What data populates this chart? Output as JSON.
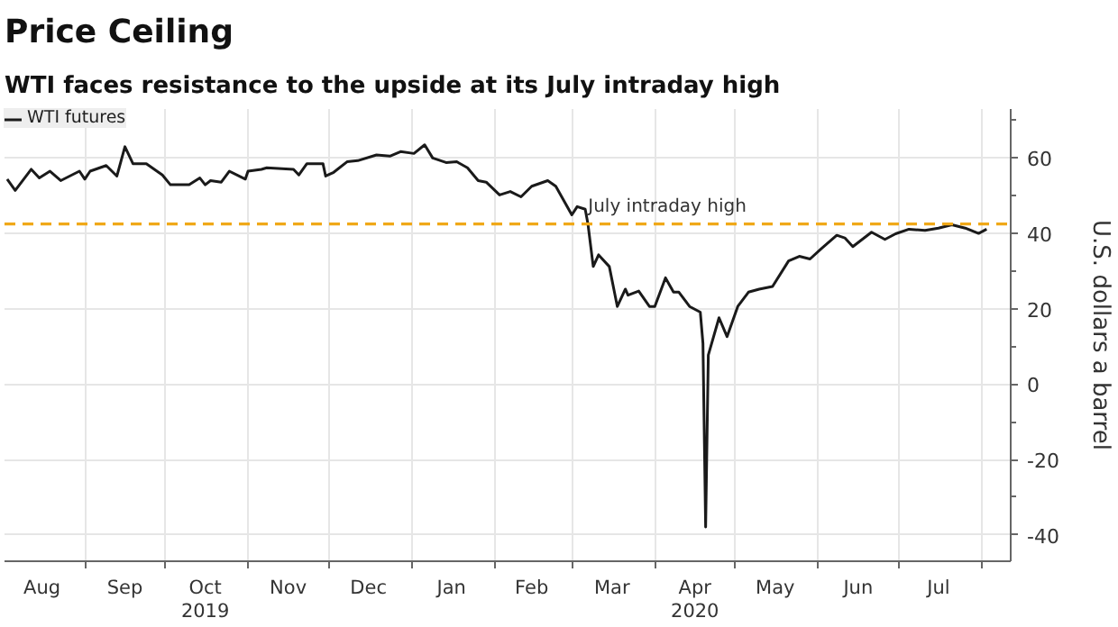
{
  "chart_data": {
    "type": "line",
    "title": "Price Ceiling",
    "subtitle": "WTI faces resistance to the upside at its July intraday high",
    "y2label": "U.S. dollars a barrel",
    "x": [
      "2019-08-03",
      "2019-08-06",
      "2019-08-12",
      "2019-08-15",
      "2019-08-19",
      "2019-08-23",
      "2019-08-30",
      "2019-09-01",
      "2019-09-03",
      "2019-09-09",
      "2019-09-13",
      "2019-09-16",
      "2019-09-19",
      "2019-09-24",
      "2019-09-30",
      "2019-10-03",
      "2019-10-10",
      "2019-10-14",
      "2019-10-16",
      "2019-10-18",
      "2019-10-22",
      "2019-10-25",
      "2019-10-31",
      "2019-11-01",
      "2019-11-06",
      "2019-11-08",
      "2019-11-18",
      "2019-11-20",
      "2019-11-23",
      "2019-11-29",
      "2019-11-30",
      "2019-12-03",
      "2019-12-08",
      "2019-12-12",
      "2019-12-19",
      "2019-12-24",
      "2019-12-28",
      "2020-01-02",
      "2020-01-06",
      "2020-01-09",
      "2020-01-14",
      "2020-01-18",
      "2020-01-22",
      "2020-01-26",
      "2020-01-29",
      "2020-02-03",
      "2020-02-07",
      "2020-02-11",
      "2020-02-15",
      "2020-02-21",
      "2020-02-24",
      "2020-03-01",
      "2020-03-03",
      "2020-03-06",
      "2020-03-07",
      "2020-03-09",
      "2020-03-11",
      "2020-03-15",
      "2020-03-18",
      "2020-03-21",
      "2020-03-22",
      "2020-03-26",
      "2020-03-30",
      "2020-04-01",
      "2020-04-05",
      "2020-04-08",
      "2020-04-10",
      "2020-04-14",
      "2020-04-18",
      "2020-04-19",
      "2020-04-20",
      "2020-04-21",
      "2020-04-25",
      "2020-04-28",
      "2020-05-02",
      "2020-05-06",
      "2020-05-10",
      "2020-05-15",
      "2020-05-21",
      "2020-05-25",
      "2020-05-29",
      "2020-06-02",
      "2020-06-08",
      "2020-06-11",
      "2020-06-14",
      "2020-06-21",
      "2020-06-26",
      "2020-06-30",
      "2020-07-05",
      "2020-07-11",
      "2020-07-16",
      "2020-07-21",
      "2020-07-26",
      "2020-07-31",
      "2020-08-03"
    ],
    "series": [
      {
        "name": "WTI futures",
        "color": "#1a1a1a",
        "values": [
          54.4,
          51.4,
          57,
          54.7,
          56.5,
          54,
          56.5,
          54.4,
          56.5,
          58,
          55.2,
          63,
          58.5,
          58.5,
          55.5,
          52.9,
          52.9,
          54.7,
          52.9,
          54,
          53.6,
          56.5,
          54.4,
          56.5,
          57,
          57.4,
          57,
          55.5,
          58.5,
          58.5,
          55.2,
          56.2,
          59,
          59.3,
          60.8,
          60.5,
          61.7,
          61.2,
          63.5,
          60,
          58.8,
          59,
          57.4,
          54,
          53.6,
          50.2,
          51.1,
          49.7,
          52.5,
          54,
          52.5,
          44.9,
          47.1,
          46.4,
          42.6,
          31.2,
          34.3,
          31.2,
          20.6,
          25.2,
          23.6,
          24.7,
          20.6,
          20.6,
          28.2,
          24.4,
          24.4,
          20.6,
          19.1,
          10.8,
          -37.9,
          7.7,
          17.6,
          12.6,
          20.6,
          24.4,
          25.2,
          25.9,
          32.7,
          33.9,
          33.2,
          35.8,
          39.5,
          38.8,
          36.5,
          40.3,
          38.4,
          39.9,
          41.1,
          40.8,
          41.4,
          42.3,
          41.4,
          40,
          41.1
        ]
      }
    ],
    "xlim": [
      "2019-08-02",
      "2020-08-12"
    ],
    "xticks": [
      {
        "value": "2019-08-16",
        "label": "Aug"
      },
      {
        "value": "2019-09-01",
        "label": null
      },
      {
        "value": "2019-09-16",
        "label": "Sep"
      },
      {
        "value": "2019-10-01",
        "label": null
      },
      {
        "value": "2019-10-16",
        "label": "Oct\n2019"
      },
      {
        "value": "2019-11-01",
        "label": null
      },
      {
        "value": "2019-11-16",
        "label": "Nov"
      },
      {
        "value": "2019-12-01",
        "label": null
      },
      {
        "value": "2019-12-16",
        "label": "Dec"
      },
      {
        "value": "2020-01-01",
        "label": null
      },
      {
        "value": "2020-01-16",
        "label": "Jan"
      },
      {
        "value": "2020-02-01",
        "label": null
      },
      {
        "value": "2020-02-15",
        "label": "Feb"
      },
      {
        "value": "2020-03-01",
        "label": null
      },
      {
        "value": "2020-03-16",
        "label": "Mar"
      },
      {
        "value": "2020-04-01",
        "label": null
      },
      {
        "value": "2020-04-16",
        "label": "Apr\n2020"
      },
      {
        "value": "2020-05-01",
        "label": null
      },
      {
        "value": "2020-05-16",
        "label": "May"
      },
      {
        "value": "2020-06-01",
        "label": null
      },
      {
        "value": "2020-06-16",
        "label": "Jun"
      },
      {
        "value": "2020-07-01",
        "label": null
      },
      {
        "value": "2020-07-16",
        "label": "Jul"
      },
      {
        "value": "2020-08-01",
        "label": null
      }
    ],
    "ylim": [
      -47,
      73
    ],
    "yticks": [
      -40,
      {
        "value": -30,
        "label": null
      },
      -20,
      {
        "value": -10,
        "label": null
      },
      0,
      {
        "value": 10,
        "label": null
      },
      20,
      {
        "value": 30,
        "label": null
      },
      40,
      {
        "value": 50,
        "label": null
      },
      60,
      {
        "value": 70,
        "label": null
      }
    ],
    "ref_lines": [
      {
        "axis": "y",
        "value": 42.5,
        "label": "July intraday high",
        "color": "#f0a818",
        "line_style": "dashed"
      }
    ],
    "grid": true,
    "legend": "top left",
    "marker": "none",
    "line_style": "solid"
  }
}
